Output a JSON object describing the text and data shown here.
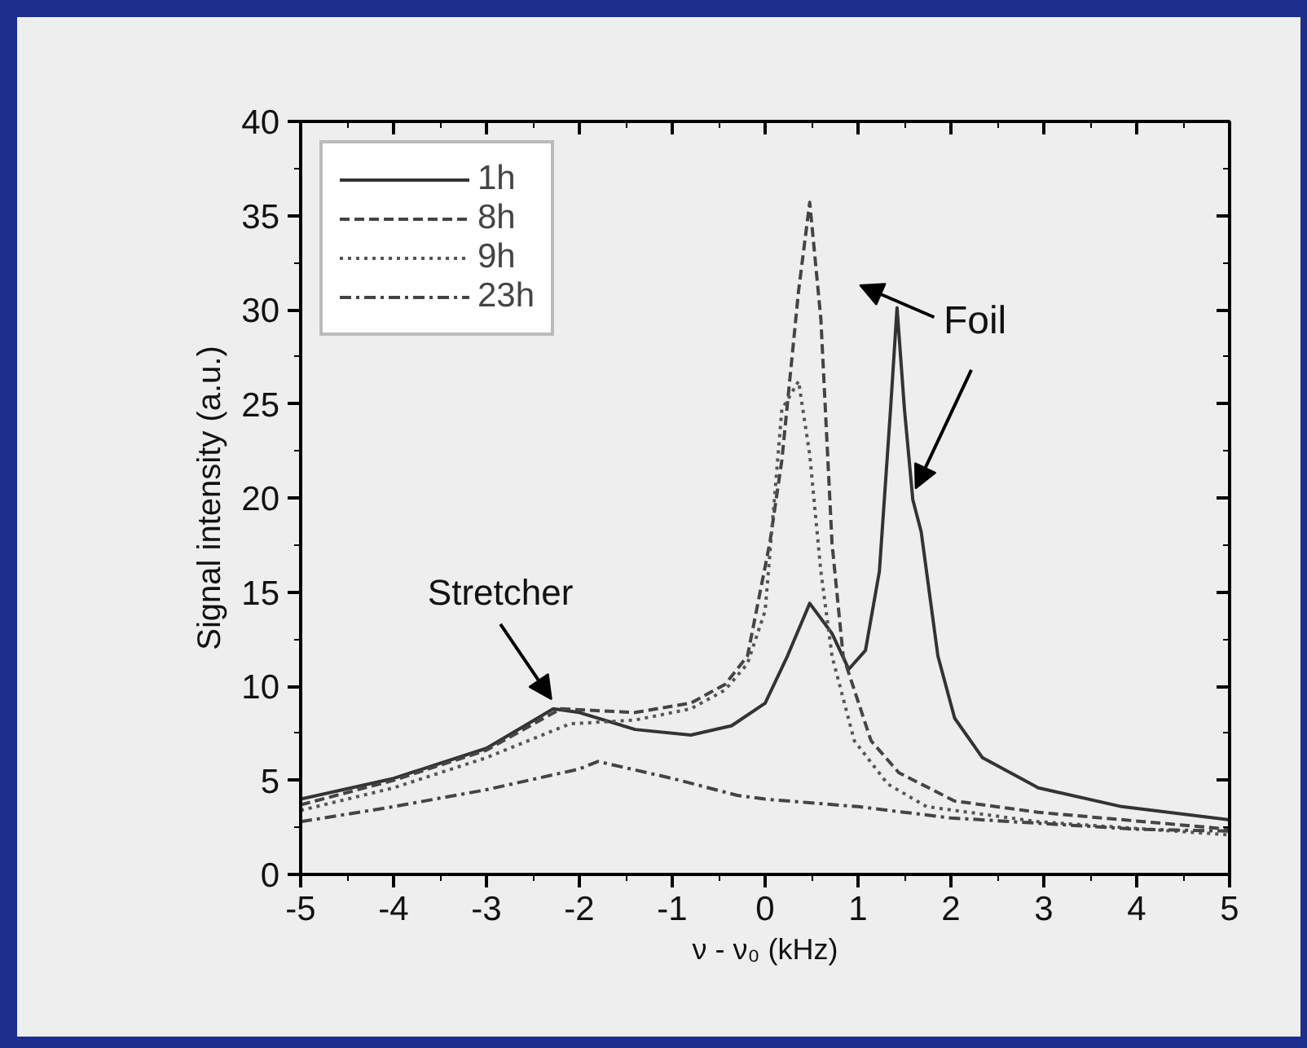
{
  "chart_data": {
    "type": "line",
    "xlabel": "ν - ν₀ (kHz)",
    "ylabel": "Signal intensity (a.u.)",
    "xlim": [
      -5,
      5
    ],
    "xticks": [
      -5,
      -4,
      -3,
      -2,
      -1,
      0,
      1,
      2,
      3,
      4,
      5
    ],
    "ylim": [
      0,
      40
    ],
    "yticks": [
      0,
      5,
      10,
      15,
      20,
      25,
      30,
      35,
      40
    ],
    "grid": false,
    "legend": "top left",
    "marker": "none",
    "series": [
      {
        "name": "1h",
        "color": "#333333",
        "line_style": "solid",
        "x": [
          -5,
          -4,
          -3,
          -2.28,
          -2,
          -1.4,
          -0.8,
          -0.36,
          0,
          0.24,
          0.48,
          0.72,
          0.9,
          1.08,
          1.23,
          1.35,
          1.42,
          1.5,
          1.59,
          1.68,
          1.86,
          2.04,
          2.34,
          2.94,
          3.84,
          5
        ],
        "values": [
          4.0,
          5.1,
          6.7,
          8.8,
          8.6,
          7.7,
          7.4,
          7.9,
          9.1,
          11.6,
          14.4,
          12.8,
          10.9,
          11.9,
          16.1,
          24.7,
          30.1,
          24.7,
          19.9,
          18.2,
          11.6,
          8.3,
          6.2,
          4.6,
          3.6,
          2.9
        ]
      },
      {
        "name": "8h",
        "color": "#444444",
        "line_style": "dashed",
        "x": [
          -5,
          -4,
          -3,
          -2.2,
          -1.4,
          -0.8,
          -0.43,
          -0.19,
          0.05,
          0.18,
          0.36,
          0.48,
          0.6,
          0.72,
          0.84,
          1.14,
          1.44,
          2.04,
          2.94,
          5
        ],
        "values": [
          3.7,
          5.0,
          6.6,
          8.8,
          8.6,
          9.1,
          10.1,
          11.6,
          17.6,
          22,
          31,
          35.7,
          29.5,
          17.6,
          11.6,
          7.1,
          5.4,
          3.9,
          3.3,
          2.4
        ]
      },
      {
        "name": "9h",
        "color": "#555555",
        "line_style": "dotted",
        "x": [
          -5,
          -4,
          -3,
          -2.1,
          -1.4,
          -0.8,
          -0.43,
          -0.19,
          0,
          0.18,
          0.36,
          0.48,
          0.6,
          0.72,
          0.96,
          1.32,
          1.74,
          2.94,
          5
        ],
        "values": [
          3.4,
          4.6,
          6.2,
          8.0,
          8.2,
          8.8,
          9.8,
          11.2,
          14,
          24.7,
          26.2,
          22.3,
          16.1,
          11.6,
          7.1,
          4.8,
          3.6,
          2.8,
          2.1
        ]
      },
      {
        "name": "23h",
        "color": "#444444",
        "line_style": "dashdot",
        "x": [
          -5,
          -4,
          -3,
          -2,
          -1.8,
          -1,
          -0.3,
          0,
          1,
          2,
          3,
          4,
          5
        ],
        "values": [
          2.8,
          3.6,
          4.5,
          5.6,
          6.0,
          5.1,
          4.2,
          4.0,
          3.6,
          3.0,
          2.7,
          2.4,
          2.3
        ]
      }
    ],
    "annotations": [
      {
        "text": "Stretcher",
        "x": -2.3,
        "y": 9.3
      },
      {
        "text": "Foil",
        "x": 1.42,
        "y": 30.1
      }
    ]
  }
}
